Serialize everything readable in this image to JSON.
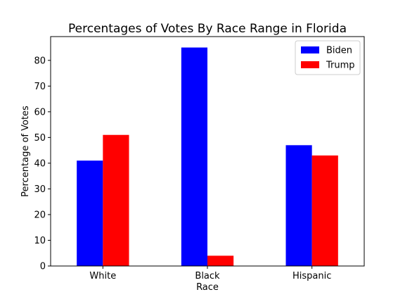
{
  "chart_data": {
    "type": "bar",
    "title": "Percentages of Votes By Race Range in Florida",
    "xlabel": "Race",
    "ylabel": "Percentage of Votes",
    "categories": [
      "White",
      "Black",
      "Hispanic"
    ],
    "series": [
      {
        "name": "Biden",
        "color": "#0000ff",
        "values": [
          41,
          85,
          47
        ]
      },
      {
        "name": "Trump",
        "color": "#ff0000",
        "values": [
          51,
          4,
          43
        ]
      }
    ],
    "ylim": [
      0,
      89.25
    ],
    "yticks": [
      0,
      10,
      20,
      30,
      40,
      50,
      60,
      70,
      80
    ],
    "grid": false,
    "legend_position": "top-right"
  }
}
